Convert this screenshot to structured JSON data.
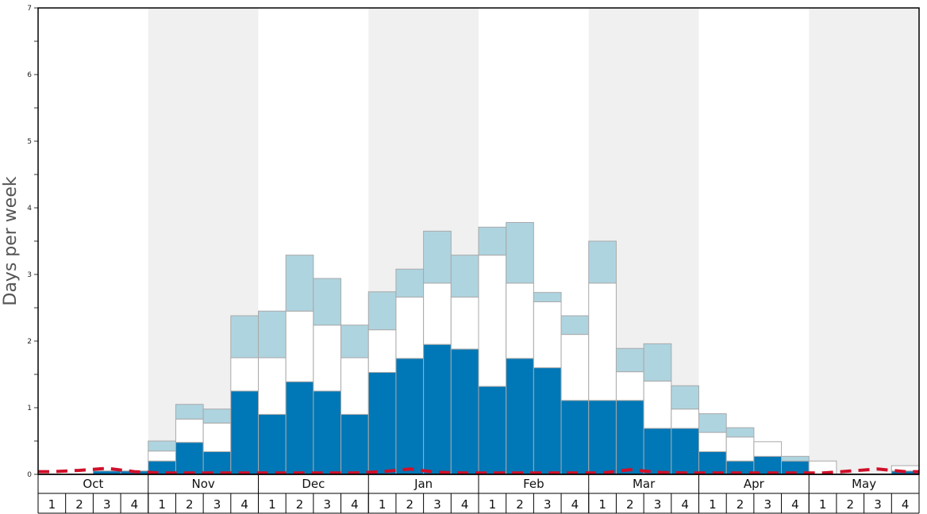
{
  "chart_data": {
    "type": "bar",
    "stacked": true,
    "ylabel": "Days per week",
    "ylim": [
      0,
      7
    ],
    "yticks": [
      "0",
      "1",
      "2",
      "3",
      "4",
      "5",
      "6",
      "7"
    ],
    "months": [
      "Oct",
      "Nov",
      "Dec",
      "Jan",
      "Feb",
      "Mar",
      "Apr",
      "May"
    ],
    "week_labels": [
      "1",
      "2",
      "3",
      "4"
    ],
    "series": [
      {
        "color": "#0077b6",
        "values": [
          0,
          0,
          0.05,
          0.05,
          0.2,
          0.48,
          0.34,
          1.25,
          0.9,
          1.39,
          1.25,
          0.9,
          1.53,
          1.74,
          1.95,
          1.88,
          1.32,
          1.74,
          1.6,
          1.11,
          1.11,
          1.11,
          0.69,
          0.69,
          0.34,
          0.2,
          0.27,
          0.2,
          0,
          0,
          0,
          0.05
        ]
      },
      {
        "color": "#ffffff",
        "values": [
          0,
          0,
          0,
          0,
          0.15,
          0.35,
          0.43,
          0.5,
          0.85,
          1.06,
          0.99,
          0.85,
          0.64,
          0.92,
          0.92,
          0.78,
          1.97,
          1.13,
          0.99,
          0.99,
          1.76,
          0.43,
          0.71,
          0.29,
          0.29,
          0.36,
          0.22,
          0,
          0.2,
          0,
          0,
          0.08
        ]
      },
      {
        "color": "#aed4e0",
        "values": [
          0,
          0,
          0,
          0,
          0.15,
          0.22,
          0.21,
          0.63,
          0.7,
          0.84,
          0.7,
          0.49,
          0.57,
          0.42,
          0.78,
          0.63,
          0.42,
          0.91,
          0.14,
          0.28,
          0.63,
          0.35,
          0.56,
          0.35,
          0.28,
          0.14,
          0,
          0.07,
          0,
          0,
          0,
          0
        ]
      }
    ],
    "threshold_line": {
      "color": "#d0102a",
      "style": "dashed",
      "values": [
        0.04,
        0.06,
        0.09,
        0.04,
        0.02,
        0.02,
        0.02,
        0.02,
        0.02,
        0.02,
        0.02,
        0.02,
        0.04,
        0.08,
        0.03,
        0.02,
        0.02,
        0.02,
        0.02,
        0.02,
        0.02,
        0.07,
        0.03,
        0.02,
        0.02,
        0.02,
        0.02,
        0.02,
        0.02,
        0.05,
        0.08,
        0.04
      ]
    },
    "shading": {
      "alternate_month_color": "#f0f0f0",
      "shaded_months": [
        "Nov",
        "Jan",
        "Mar",
        "May"
      ]
    },
    "grid": false
  }
}
